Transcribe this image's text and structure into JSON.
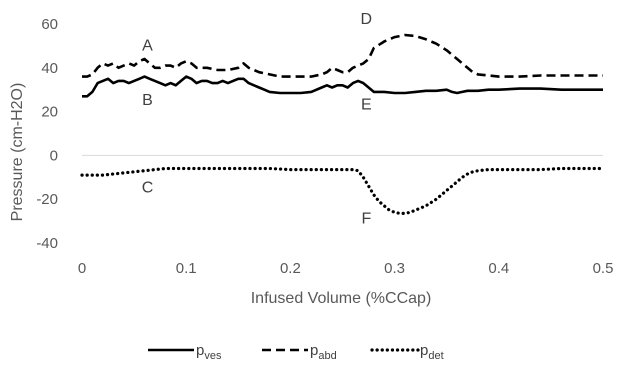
{
  "chart_data": {
    "type": "line",
    "xlabel": "Infused Volume (%CCap)",
    "ylabel": "Pressure (cm-H2O)",
    "xlim": [
      0,
      0.5
    ],
    "ylim": [
      -40,
      60
    ],
    "x_ticks": [
      "0",
      "0.1",
      "0.2",
      "0.3",
      "0.4",
      "0.5"
    ],
    "y_ticks": [
      "60",
      "40",
      "20",
      "0",
      "-20",
      "-40"
    ],
    "grid": false,
    "legend_position": "bottom",
    "series": [
      {
        "name": "p_ves",
        "legend_main": "p",
        "legend_sub": "ves",
        "style": "solid",
        "color": "#000000",
        "x": [
          0,
          0.005,
          0.01,
          0.015,
          0.02,
          0.025,
          0.03,
          0.035,
          0.04,
          0.045,
          0.05,
          0.055,
          0.06,
          0.065,
          0.07,
          0.075,
          0.08,
          0.085,
          0.09,
          0.095,
          0.1,
          0.105,
          0.11,
          0.115,
          0.12,
          0.125,
          0.13,
          0.135,
          0.14,
          0.145,
          0.15,
          0.155,
          0.16,
          0.165,
          0.17,
          0.175,
          0.18,
          0.19,
          0.2,
          0.21,
          0.22,
          0.23,
          0.235,
          0.24,
          0.245,
          0.25,
          0.255,
          0.26,
          0.265,
          0.27,
          0.275,
          0.28,
          0.285,
          0.29,
          0.3,
          0.31,
          0.32,
          0.33,
          0.34,
          0.35,
          0.355,
          0.36,
          0.365,
          0.37,
          0.38,
          0.39,
          0.4,
          0.42,
          0.44,
          0.46,
          0.48,
          0.5
        ],
        "y": [
          27,
          27,
          29,
          33,
          34,
          35,
          33,
          34,
          34,
          33,
          34,
          35,
          36,
          35,
          34,
          33,
          32,
          33,
          32,
          34,
          36,
          35,
          33,
          34,
          34,
          33,
          33,
          34,
          33,
          34,
          35,
          35,
          33,
          32,
          31,
          30,
          29,
          28.5,
          28.5,
          28.5,
          29,
          31,
          32,
          31,
          32,
          32,
          31,
          33,
          34,
          33,
          31,
          29,
          29,
          29,
          28.5,
          28.5,
          29,
          29.5,
          29.5,
          30,
          29,
          28.5,
          29,
          29.5,
          29.5,
          30,
          30,
          30.5,
          30.5,
          30,
          30,
          30
        ]
      },
      {
        "name": "p_abd",
        "legend_main": "p",
        "legend_sub": "abd",
        "style": "dashed",
        "color": "#000000",
        "x": [
          0,
          0.005,
          0.01,
          0.015,
          0.02,
          0.025,
          0.03,
          0.035,
          0.04,
          0.045,
          0.05,
          0.055,
          0.06,
          0.065,
          0.07,
          0.075,
          0.08,
          0.085,
          0.09,
          0.095,
          0.1,
          0.105,
          0.11,
          0.12,
          0.13,
          0.14,
          0.15,
          0.155,
          0.16,
          0.17,
          0.18,
          0.19,
          0.2,
          0.21,
          0.22,
          0.23,
          0.235,
          0.24,
          0.245,
          0.25,
          0.255,
          0.26,
          0.265,
          0.27,
          0.275,
          0.28,
          0.29,
          0.3,
          0.31,
          0.32,
          0.33,
          0.34,
          0.35,
          0.36,
          0.365,
          0.37,
          0.375,
          0.38,
          0.39,
          0.4,
          0.42,
          0.44,
          0.46,
          0.48,
          0.5
        ],
        "y": [
          36,
          36,
          37,
          40,
          42,
          41,
          42,
          40,
          41,
          42,
          41,
          43,
          44,
          42,
          40,
          40,
          41,
          41,
          40,
          42,
          43,
          42,
          40,
          40,
          39,
          39,
          40,
          42,
          40,
          38,
          37,
          36,
          36,
          36,
          36,
          37,
          38,
          40,
          39,
          38,
          38,
          40,
          41,
          42,
          44,
          49,
          52,
          54,
          55,
          54.5,
          53,
          51,
          48,
          44,
          42,
          40,
          38,
          37,
          36.5,
          36,
          36,
          36.5,
          36.5,
          36.5,
          36.5
        ]
      },
      {
        "name": "p_det",
        "legend_main": "p",
        "legend_sub": "det",
        "style": "dotted",
        "color": "#000000",
        "x": [
          0,
          0.02,
          0.04,
          0.06,
          0.08,
          0.1,
          0.12,
          0.14,
          0.16,
          0.18,
          0.2,
          0.22,
          0.24,
          0.26,
          0.265,
          0.27,
          0.275,
          0.28,
          0.285,
          0.29,
          0.295,
          0.3,
          0.305,
          0.31,
          0.315,
          0.32,
          0.325,
          0.33,
          0.335,
          0.34,
          0.345,
          0.35,
          0.355,
          0.36,
          0.365,
          0.37,
          0.375,
          0.38,
          0.39,
          0.4,
          0.42,
          0.44,
          0.46,
          0.48,
          0.5
        ],
        "y": [
          -9,
          -9,
          -8,
          -7,
          -6,
          -6,
          -6,
          -6,
          -6,
          -6,
          -6.5,
          -6.5,
          -6.5,
          -6.5,
          -7,
          -10,
          -14,
          -18,
          -21,
          -23,
          -25,
          -26,
          -26.5,
          -26.5,
          -26,
          -25,
          -24,
          -23,
          -21.5,
          -20,
          -18,
          -16,
          -14,
          -12,
          -10,
          -8.5,
          -7.5,
          -7,
          -6.5,
          -6.5,
          -6.5,
          -6.5,
          -6,
          -6,
          -6
        ]
      }
    ],
    "annotations": [
      {
        "text": "A",
        "x": 0.06,
        "y": 48
      },
      {
        "text": "B",
        "x": 0.06,
        "y": 23
      },
      {
        "text": "C",
        "x": 0.06,
        "y": -17
      },
      {
        "text": "D",
        "x": 0.27,
        "y": 60
      },
      {
        "text": "E",
        "x": 0.27,
        "y": 21
      },
      {
        "text": "F",
        "x": 0.27,
        "y": -31
      }
    ]
  }
}
